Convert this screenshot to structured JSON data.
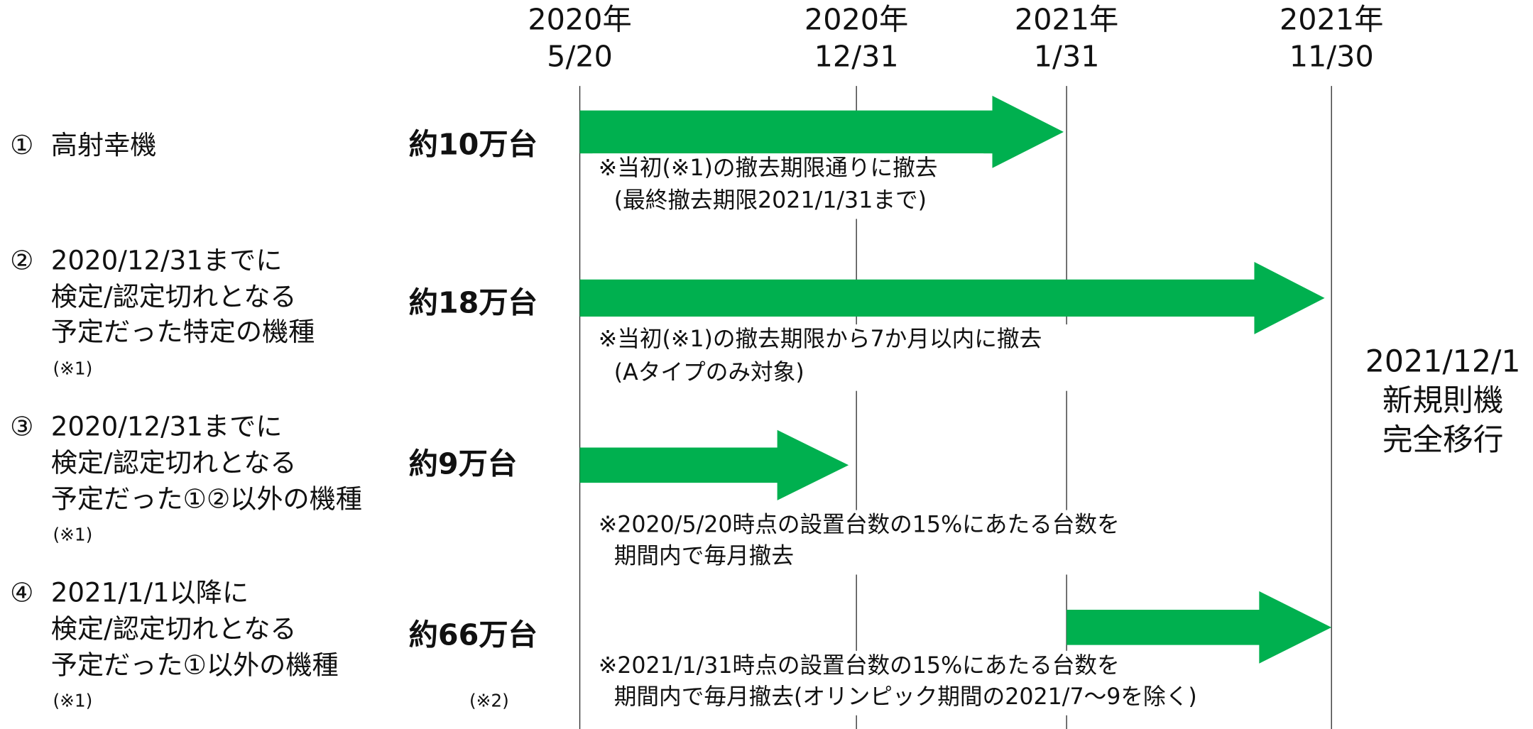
{
  "columns": [
    {
      "year": "2020年",
      "date": "5/20"
    },
    {
      "year": "2020年",
      "date": "12/31"
    },
    {
      "year": "2021年",
      "date": "1/31"
    },
    {
      "year": "2021年",
      "date": "11/30"
    }
  ],
  "rows": [
    {
      "number": "①",
      "label": [
        "高射幸機"
      ],
      "count": "約10万台",
      "note": [
        "※当初(※1)の撤去期限通りに撤去",
        "(最終撤去期限2021/1/31まで)"
      ]
    },
    {
      "number": "②",
      "label": [
        "2020/12/31までに",
        "検定/認定切れとなる",
        "予定だった特定の機種"
      ],
      "footnote": "(※1)",
      "count": "約18万台",
      "note": [
        "※当初(※1)の撤去期限から7か月以内に撤去",
        "(Aタイプのみ対象)"
      ]
    },
    {
      "number": "③",
      "label": [
        "2020/12/31までに",
        "検定/認定切れとなる",
        "予定だった①②以外の機種"
      ],
      "footnote": "(※1)",
      "count": "約9万台",
      "note": [
        "※2020/5/20時点の設置台数の15%にあたる台数を",
        "期間内で毎月撤去"
      ]
    },
    {
      "number": "④",
      "label": [
        "2021/1/1以降に",
        "検定/認定切れとなる",
        "予定だった①以外の機種"
      ],
      "footnote": "(※1)",
      "count": "約66万台",
      "count_footnote": "(※2)",
      "note": [
        "※2021/1/31時点の設置台数の15%にあたる台数を",
        "期間内で毎月撤去(オリンピック期間の2021/7～9を除く)"
      ]
    }
  ],
  "final": [
    "2021/12/1",
    "新規則機",
    "完全移行"
  ]
}
